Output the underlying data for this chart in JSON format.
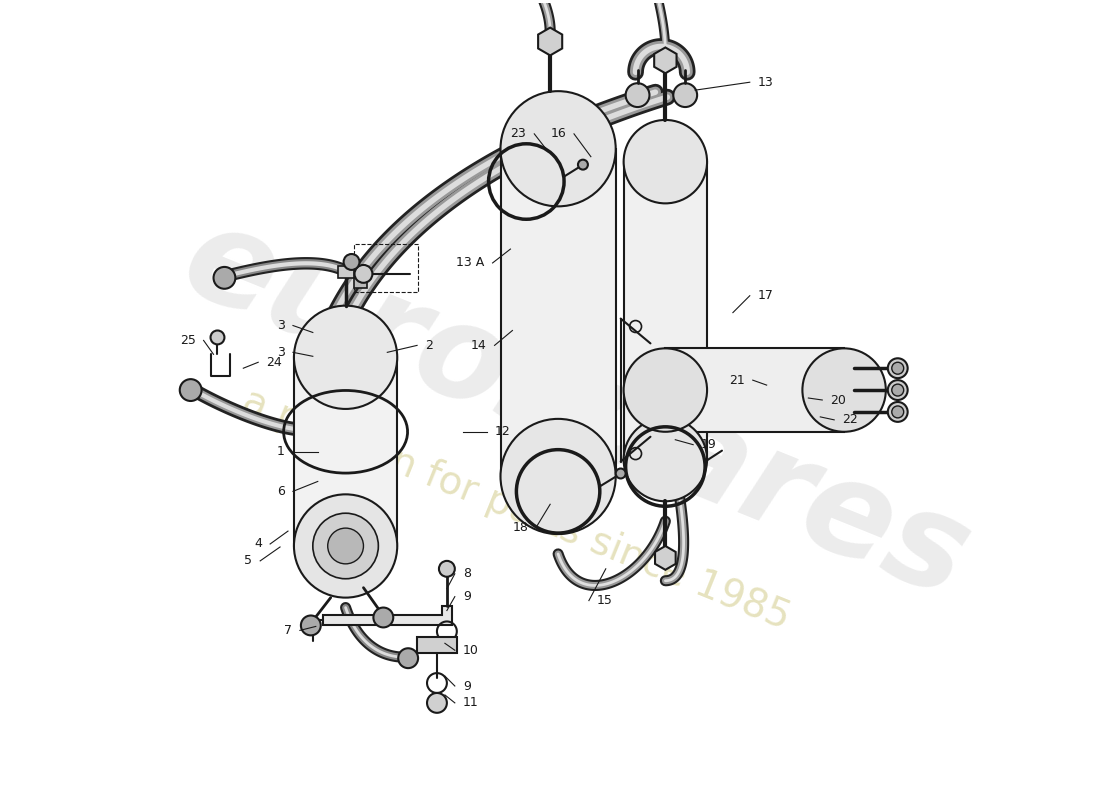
{
  "bg_color": "#ffffff",
  "lc": "#1a1a1a",
  "wm1": "eurospares",
  "wm2": "a passion for parts since 1985",
  "figsize": [
    11.0,
    8.0
  ],
  "dpi": 100
}
